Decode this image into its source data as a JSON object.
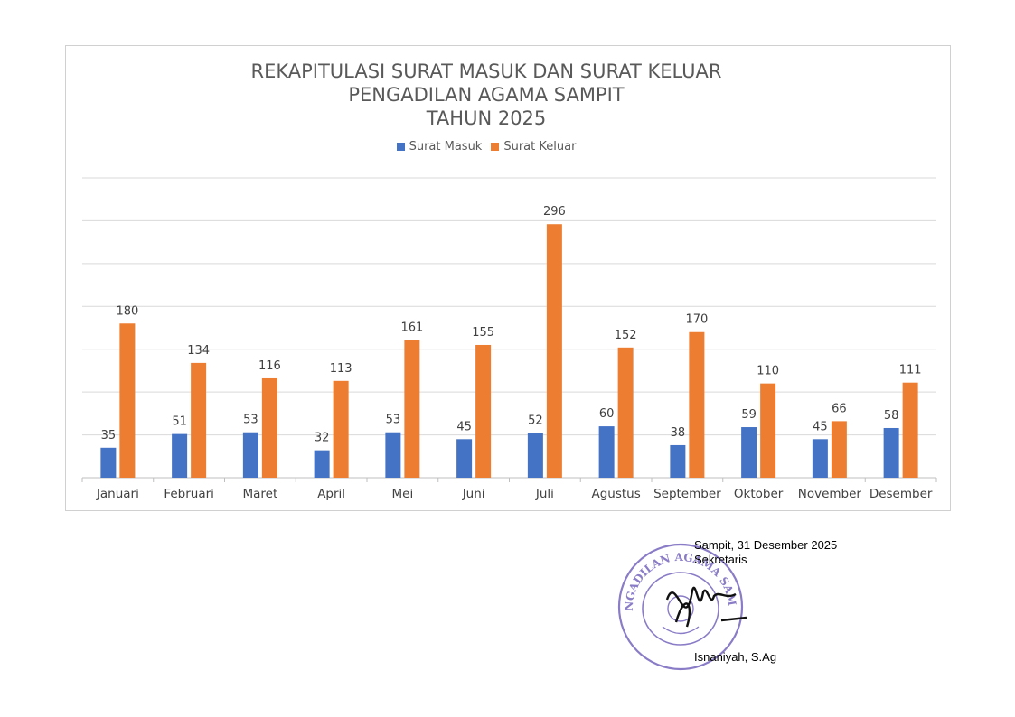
{
  "chart_data": {
    "type": "bar",
    "title": [
      "REKAPITULASI SURAT MASUK DAN SURAT KELUAR",
      "PENGADILAN AGAMA SAMPIT",
      "TAHUN 2025"
    ],
    "categories": [
      "Januari",
      "Februari",
      "Maret",
      "April",
      "Mei",
      "Juni",
      "Juli",
      "Agustus",
      "September",
      "Oktober",
      "November",
      "Desember"
    ],
    "series": [
      {
        "name": "Surat Masuk",
        "color": "#4472c4",
        "values": [
          35,
          51,
          53,
          32,
          53,
          45,
          52,
          60,
          38,
          59,
          45,
          58
        ]
      },
      {
        "name": "Surat Keluar",
        "color": "#ed7d31",
        "values": [
          180,
          134,
          116,
          113,
          161,
          155,
          296,
          152,
          170,
          110,
          66,
          111
        ]
      }
    ],
    "ylim": [
      0,
      350
    ],
    "grid": true,
    "legend_position": "top",
    "data_labels": true
  },
  "signature": {
    "place_date": "Sampit, 31 Desember 2025",
    "position": "Sekretaris",
    "name": "Isnaniyah, S.Ag",
    "seal_text": "PENGADILAN AGAMA SAMPIT",
    "seal_color": "#8a7cc6"
  }
}
